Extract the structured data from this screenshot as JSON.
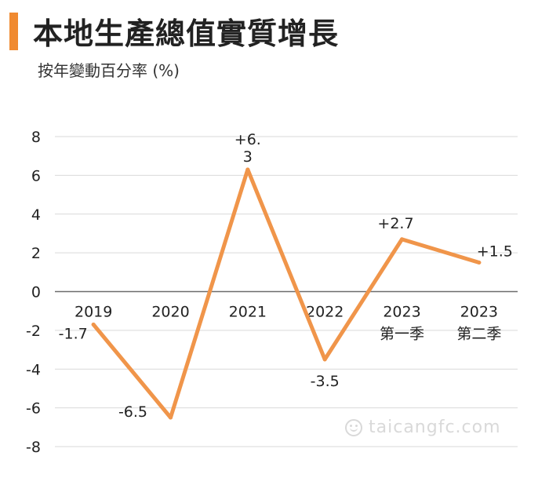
{
  "header": {
    "title": "本地生產總值實質增長",
    "subtitle": "按年變動百分率 (%)",
    "accent_color": "#f08a30"
  },
  "watermark": {
    "text": "taicangfc.com",
    "icon": "smiley-face-icon"
  },
  "chart_data": {
    "type": "line",
    "title": "本地生產總值實質增長",
    "ylabel": "按年變動百分率 (%)",
    "categories": [
      [
        "2019"
      ],
      [
        "2020"
      ],
      [
        "2021"
      ],
      [
        "2022"
      ],
      [
        "2023",
        "第一季"
      ],
      [
        "2023",
        "第二季"
      ]
    ],
    "series": [
      {
        "color": "#f0954a",
        "values": [
          -1.7,
          -6.5,
          6.3,
          -3.5,
          2.7,
          1.5
        ],
        "labels": [
          [
            "-1.7"
          ],
          [
            "-6.5"
          ],
          [
            "+6.",
            "3"
          ],
          [
            "-3.5"
          ],
          [
            "+2.7"
          ],
          [
            "+1.5"
          ]
        ]
      }
    ],
    "ylim": [
      -8,
      8
    ],
    "yticks": [
      "8",
      "6",
      "4",
      "2",
      "0",
      "-2",
      "-4",
      "-6",
      "-8"
    ],
    "grid": true,
    "legend": "none"
  }
}
